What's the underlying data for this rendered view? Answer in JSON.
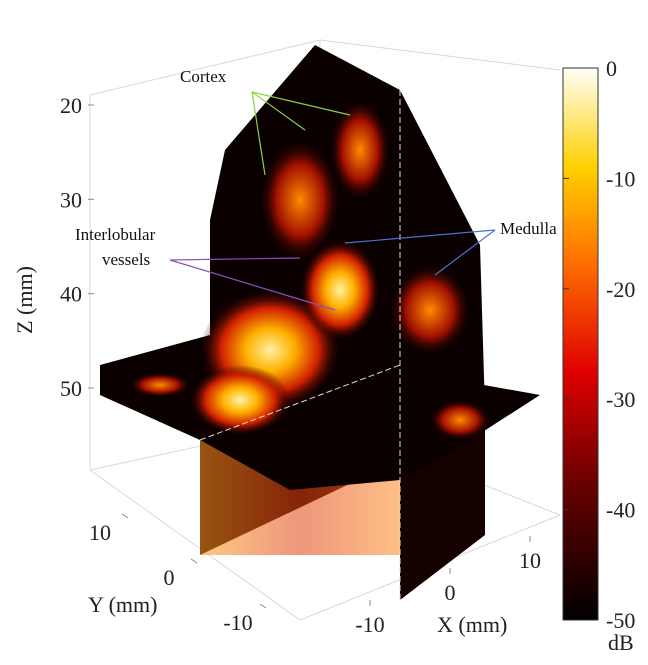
{
  "figure": {
    "z_axis": {
      "label": "Z (mm)",
      "ticks": [
        20,
        30,
        40,
        50
      ]
    },
    "y_axis": {
      "label": "Y (mm)",
      "ticks": [
        10,
        0,
        -10
      ]
    },
    "x_axis": {
      "label": "X (mm)",
      "ticks": [
        -10,
        0,
        10
      ]
    },
    "colorbar": {
      "unit": "dB",
      "lim": [
        -50,
        0
      ],
      "ticks": [
        0,
        -10,
        -20,
        -30,
        -40,
        -50
      ]
    },
    "annotations": {
      "cortex": "Cortex",
      "vessels": [
        "Interlobular",
        "vessels"
      ],
      "medulla": "Medulla"
    }
  }
}
